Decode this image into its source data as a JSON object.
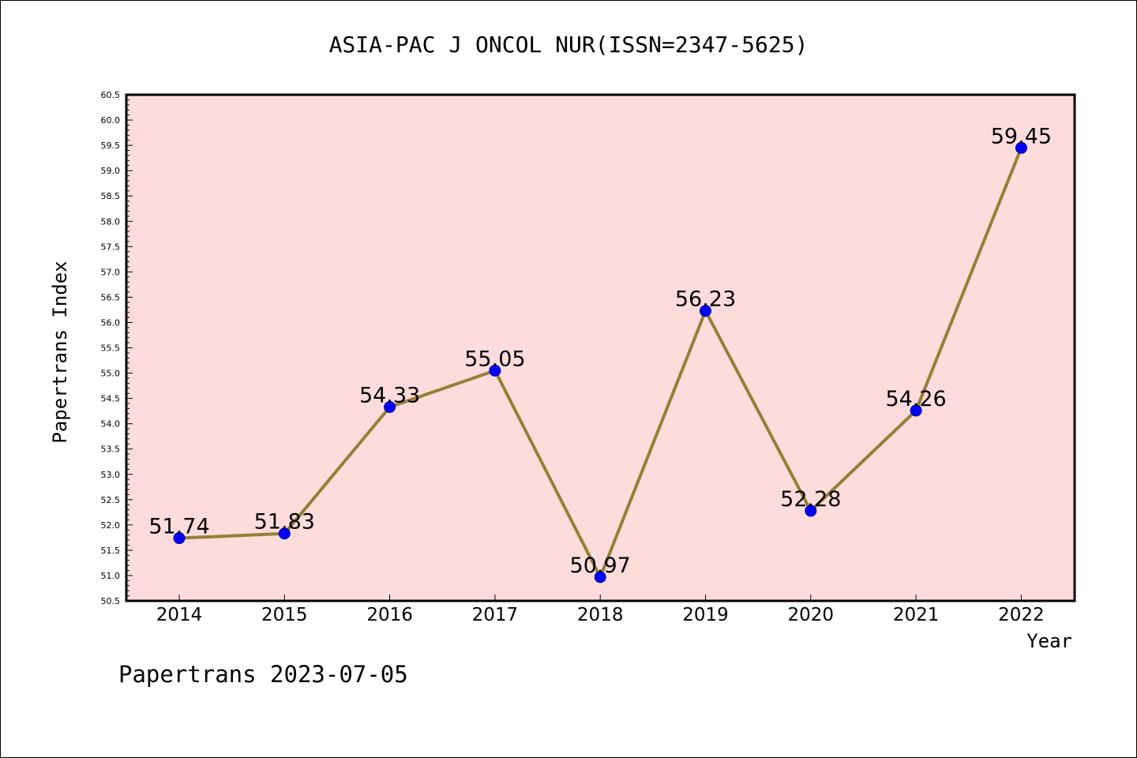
{
  "chart_data": {
    "type": "line",
    "title": "ASIA-PAC J ONCOL NUR(ISSN=2347-5625)",
    "xlabel": "Year",
    "ylabel": "Papertrans Index",
    "categories": [
      "2014",
      "2015",
      "2016",
      "2017",
      "2018",
      "2019",
      "2020",
      "2021",
      "2022"
    ],
    "series": [
      {
        "values": [
          51.74,
          51.83,
          54.33,
          55.05,
          50.97,
          56.23,
          52.28,
          54.26,
          59.45
        ],
        "data_labels": [
          "51.74",
          "51.83",
          "54.33",
          "55.05",
          "50.97",
          "56.23",
          "52.28",
          "54.26",
          "59.45"
        ]
      }
    ],
    "ylim": [
      50.5,
      60.5
    ],
    "yticks": [
      "50.5",
      "51.0",
      "51.5",
      "52.0",
      "52.5",
      "53.0",
      "53.5",
      "54.0",
      "54.5",
      "55.0",
      "55.5",
      "56.0",
      "56.5",
      "57.0",
      "57.5",
      "58.0",
      "58.5",
      "59.0",
      "59.5",
      "60.0",
      "60.5"
    ],
    "grid": false,
    "legend": "none",
    "footer": "Papertrans 2023-07-05",
    "colors": {
      "plot_background": "#FFDCDC",
      "line": "#948037",
      "marker": "#0000FF",
      "axis": "#000000"
    }
  }
}
